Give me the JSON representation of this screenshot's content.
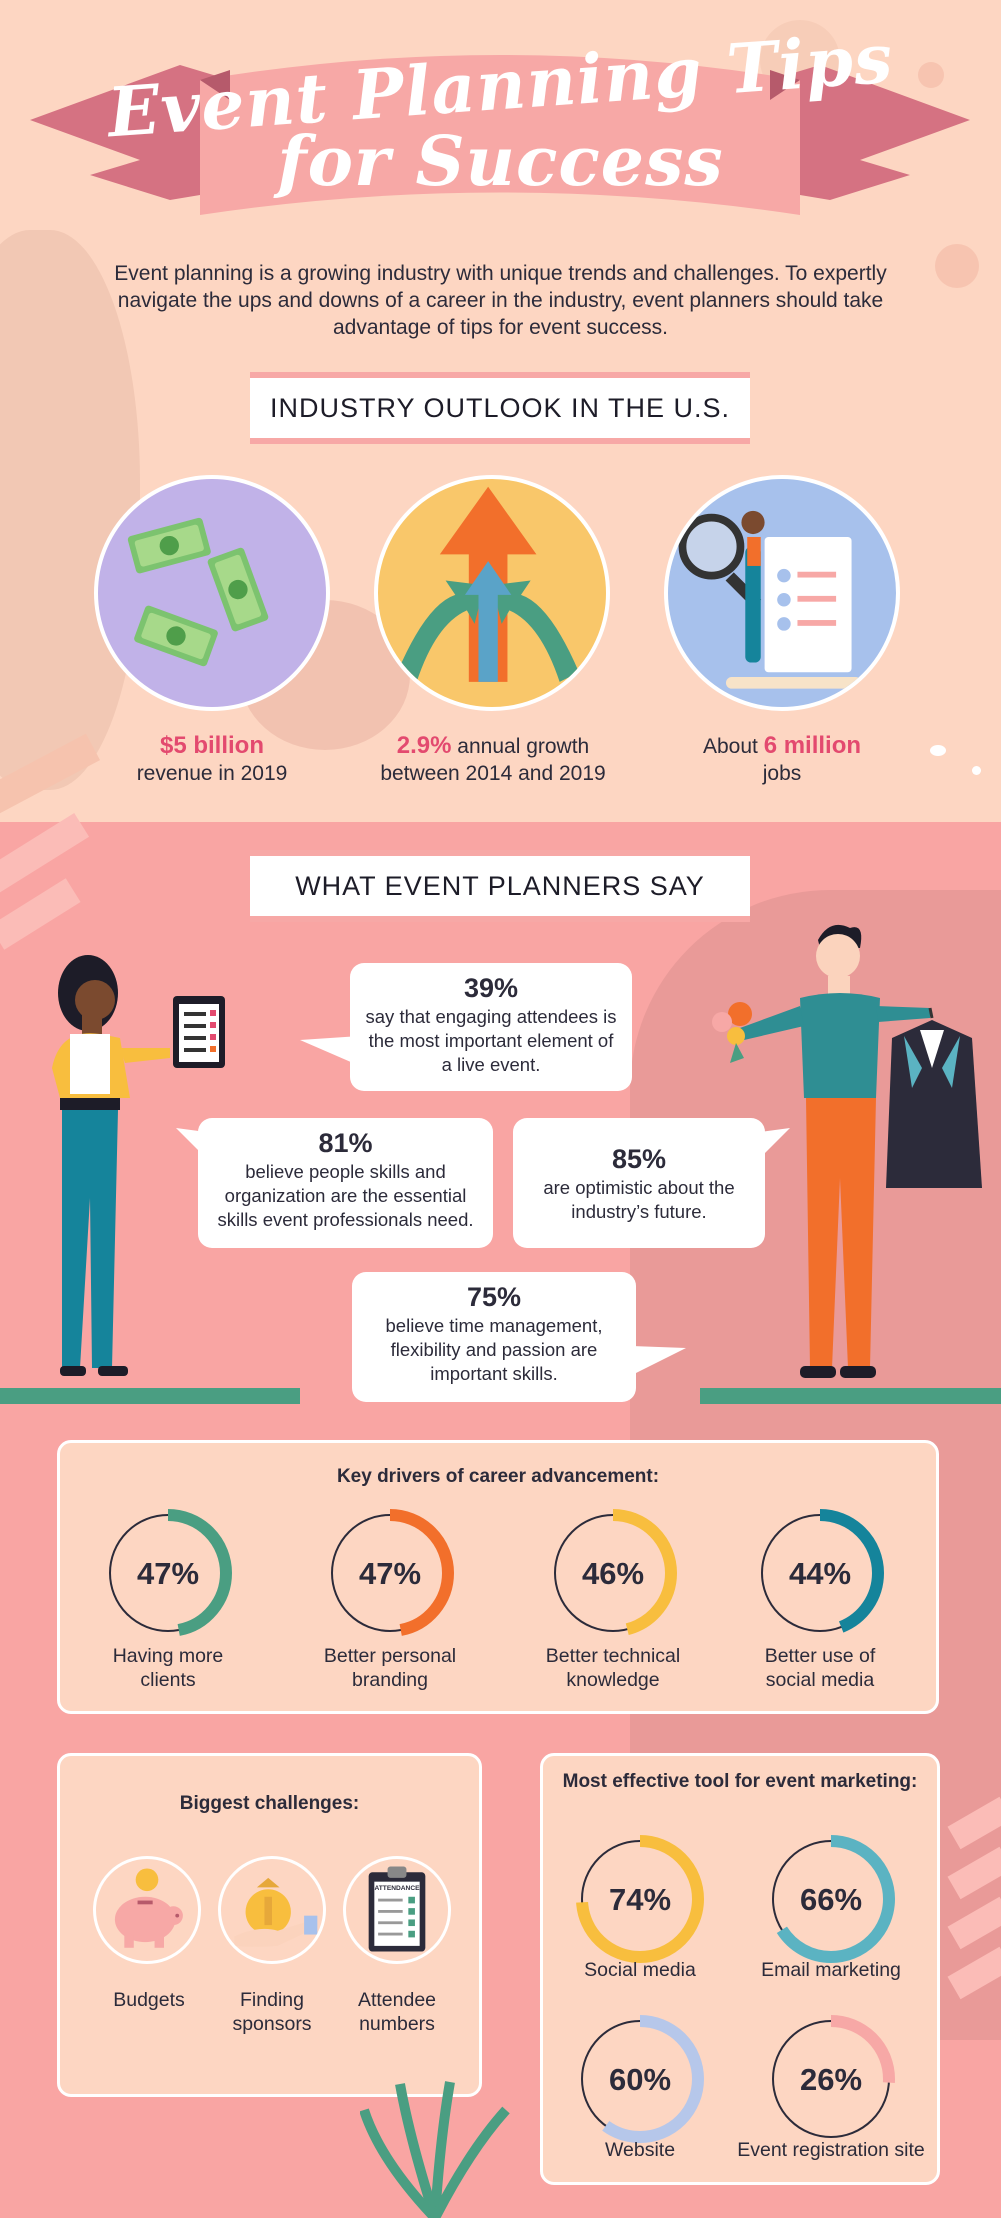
{
  "header": {
    "title_line1": "Event Planning Tips",
    "title_line2": "for Success",
    "intro": "Event planning is a growing industry with unique trends and challenges. To expertly navigate the ups and downs of a career in the industry, event planners should take advantage of tips for event success."
  },
  "outlook": {
    "heading": "INDUSTRY OUTLOOK IN THE U.S.",
    "stats": [
      {
        "highlight": "$5 billion",
        "text": "revenue in 2019",
        "icon": "money-icon"
      },
      {
        "highlight": "2.9%",
        "text_after": "annual growth",
        "text": "between 2014 and 2019",
        "icon": "growth-arrows-icon"
      },
      {
        "prefix": "About",
        "highlight": "6 million",
        "text": "jobs",
        "icon": "job-search-icon"
      }
    ]
  },
  "say": {
    "heading": "WHAT EVENT PLANNERS SAY",
    "bubbles": [
      {
        "pct": "39%",
        "text": "say that engaging attendees is the most important element of a live event."
      },
      {
        "pct": "81%",
        "text": "believe people skills and organization are the essential skills event professionals need."
      },
      {
        "pct": "85%",
        "text": "are optimistic about the industry’s future."
      },
      {
        "pct": "75%",
        "text": "believe time management, flexibility and passion are important skills."
      }
    ]
  },
  "drivers": {
    "title": "Key drivers of career advancement:",
    "items": [
      {
        "value": 47,
        "label": "47%",
        "name": "Having more clients",
        "color": "#4a9e82"
      },
      {
        "value": 47,
        "label": "47%",
        "name": "Better personal branding",
        "color": "#f26f2b"
      },
      {
        "value": 46,
        "label": "46%",
        "name": "Better technical knowledge",
        "color": "#f8be3e"
      },
      {
        "value": 44,
        "label": "44%",
        "name": "Better use of social media",
        "color": "#15849b"
      }
    ]
  },
  "challenges": {
    "title": "Biggest challenges:",
    "items": [
      {
        "label": "Budgets",
        "icon": "piggy-bank-icon"
      },
      {
        "label": "Finding sponsors",
        "icon": "money-bag-hand-icon"
      },
      {
        "label": "Attendee numbers",
        "icon": "attendance-clipboard-icon",
        "icon_text": "ATTENDANCE"
      }
    ]
  },
  "marketing": {
    "title": "Most effective tool for event marketing:",
    "items": [
      {
        "value": 74,
        "label": "74%",
        "name": "Social media",
        "color": "#f8be3e"
      },
      {
        "value": 66,
        "label": "66%",
        "name": "Email marketing",
        "color": "#5bb3c2"
      },
      {
        "value": 60,
        "label": "60%",
        "name": "Website",
        "color": "#b6c7ea"
      },
      {
        "value": 26,
        "label": "26%",
        "name": "Event registration site",
        "color": "#f7a8a6"
      }
    ]
  },
  "colors": {
    "peach": "#fdd6c2",
    "pink": "#f9a5a3",
    "accent": "#e34a6f",
    "ribbon": "#f7a8a6",
    "ribbon_dark": "#d57282"
  }
}
